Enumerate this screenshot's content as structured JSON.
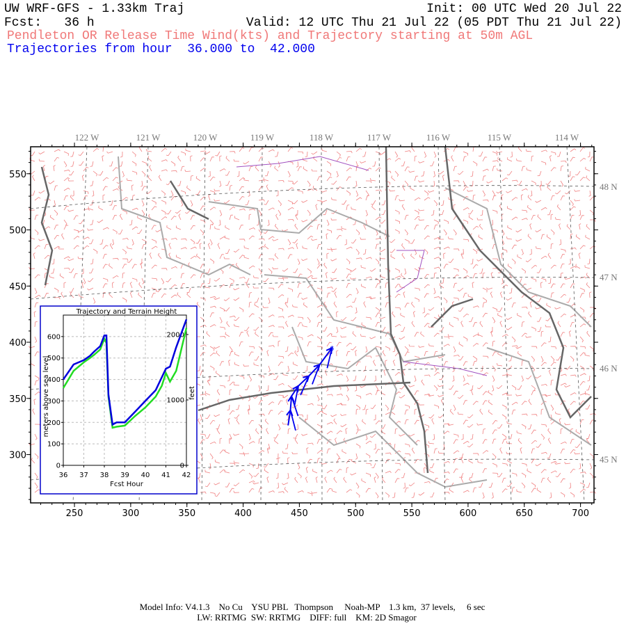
{
  "header": {
    "title": "UW WRF-GFS - 1.33km Traj",
    "init": "Init: 00 UTC Wed 20 Jul 22",
    "forecast": "Fcst:   36 h",
    "valid": "Valid: 12 UTC Thu 21 Jul 22 (05 PDT Thu 21 Jul 22)",
    "subtitle": "Pendleton OR Release Time Wind(kts) and Trajectory starting at 50m AGL",
    "trajectory_range": "Trajectories from hour  36.000 to  42.000"
  },
  "map": {
    "xlim": [
      211,
      712
    ],
    "ylim": [
      257,
      574
    ],
    "xticks": [
      250,
      300,
      350,
      400,
      450,
      500,
      550,
      600,
      650,
      700
    ],
    "yticks": [
      300,
      350,
      400,
      450,
      500,
      550
    ],
    "lon_labels": [
      "122 W",
      "121 W",
      "120 W",
      "119 W",
      "118 W",
      "117 W",
      "116 W",
      "115 W",
      "114 W"
    ],
    "lat_labels": [
      "48 N",
      "47 N",
      "46 N",
      "45 N"
    ],
    "trajectory": {
      "x": [
        440,
        442,
        443,
        449,
        458.5,
        468,
        479
      ],
      "y": [
        326,
        339.5,
        352,
        361,
        370,
        380,
        395
      ],
      "label": "6",
      "color": "#0000ee"
    }
  },
  "chart_data": {
    "type": "line",
    "title": "Trajectory and Terrain Height",
    "x": [
      36,
      36.5,
      37,
      37.3,
      37.5,
      37.8,
      38,
      38.1,
      38.2,
      38.4,
      38.6,
      39,
      39.5,
      40,
      40.5,
      40.8,
      41,
      41.2,
      41.5,
      42
    ],
    "series": [
      {
        "color": "#22dd22",
        "values": [
          360,
          440,
          480,
          500,
          515,
          540,
          590,
          570,
          320,
          175,
          180,
          185,
          230,
          270,
          320,
          370,
          430,
          390,
          440,
          640
        ]
      },
      {
        "color": "#0000dd",
        "values": [
          400,
          470,
          490,
          510,
          530,
          555,
          605,
          605,
          330,
          190,
          200,
          200,
          250,
          300,
          350,
          410,
          450,
          460,
          550,
          680
        ]
      }
    ],
    "xlabel": "Fcst Hour",
    "ylabel": "meters above sea level",
    "y2label": "feet",
    "xlim": [
      36,
      42
    ],
    "xticks": [
      36,
      37,
      38,
      39,
      40,
      41,
      42
    ],
    "ylim": [
      0,
      700
    ],
    "yticks": [
      0,
      100,
      200,
      300,
      400,
      500,
      600
    ],
    "y2lim": [
      0,
      2297
    ],
    "y2ticks": [
      0,
      1000,
      2000
    ],
    "grid": true
  },
  "footer": [
    "Model Info: V4.1.3    No Cu    YSU PBL   Thompson     Noah-MP    1.3 km,  37 levels,     6 sec",
    "LW: RRTMG  SW: RRTMG    DIFF: full    KM: 2D Smagor"
  ]
}
